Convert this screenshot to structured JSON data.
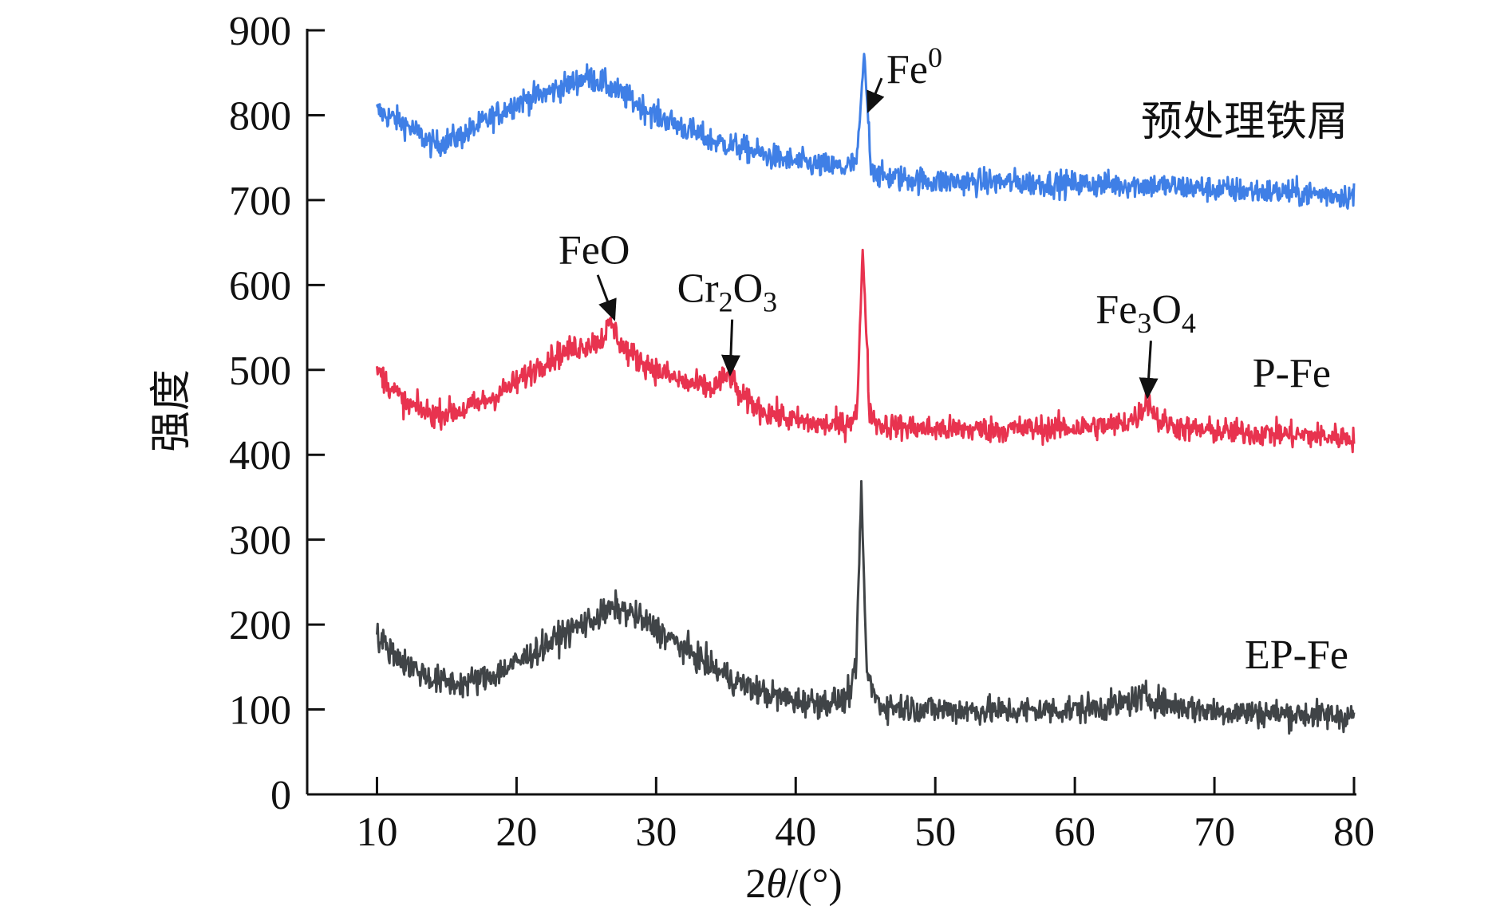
{
  "chart_data": {
    "type": "line",
    "title": "",
    "xlabel": "2θ/(°)",
    "ylabel": "强度",
    "xlim": [
      5,
      80
    ],
    "ylim": [
      0,
      900
    ],
    "xticks": [
      10,
      20,
      30,
      40,
      50,
      60,
      70,
      80
    ],
    "yticks": [
      0,
      100,
      200,
      300,
      400,
      500,
      600,
      700,
      800,
      900
    ],
    "grid": false,
    "series": [
      {
        "name": "预处理铁屑",
        "color": "#3f7fe6",
        "x_range": [
          10,
          80
        ],
        "noise": 11,
        "points": [
          [
            10,
            805
          ],
          [
            12,
            790
          ],
          [
            14,
            765
          ],
          [
            16,
            775
          ],
          [
            18,
            795
          ],
          [
            20,
            815
          ],
          [
            22,
            825
          ],
          [
            24,
            838
          ],
          [
            25,
            845
          ],
          [
            26,
            840
          ],
          [
            28,
            820
          ],
          [
            30,
            800
          ],
          [
            32,
            785
          ],
          [
            34,
            770
          ],
          [
            36,
            762
          ],
          [
            38,
            752
          ],
          [
            40,
            745
          ],
          [
            42,
            740
          ],
          [
            43.5,
            738
          ],
          [
            44.4,
            745
          ],
          [
            44.9,
            872
          ],
          [
            45.4,
            742
          ],
          [
            46,
            728
          ],
          [
            50,
            722
          ],
          [
            55,
            721
          ],
          [
            60,
            719
          ],
          [
            65,
            718
          ],
          [
            70,
            713
          ],
          [
            75,
            709
          ],
          [
            80,
            705
          ]
        ]
      },
      {
        "name": "P-Fe",
        "color": "#e8334f",
        "x_range": [
          10,
          80
        ],
        "noise": 11,
        "points": [
          [
            10,
            500
          ],
          [
            11,
            480
          ],
          [
            12,
            460
          ],
          [
            14,
            448
          ],
          [
            16,
            452
          ],
          [
            18,
            465
          ],
          [
            20,
            485
          ],
          [
            22,
            510
          ],
          [
            24,
            525
          ],
          [
            26,
            535
          ],
          [
            26.8,
            555
          ],
          [
            27.5,
            530
          ],
          [
            28,
            520
          ],
          [
            30,
            500
          ],
          [
            32,
            485
          ],
          [
            34,
            478
          ],
          [
            35.3,
            495
          ],
          [
            36,
            468
          ],
          [
            38,
            450
          ],
          [
            40,
            440
          ],
          [
            42,
            435
          ],
          [
            43.5,
            435
          ],
          [
            44.4,
            450
          ],
          [
            44.8,
            645
          ],
          [
            45.3,
            450
          ],
          [
            46,
            435
          ],
          [
            50,
            430
          ],
          [
            55,
            430
          ],
          [
            60,
            432
          ],
          [
            63,
            435
          ],
          [
            64.5,
            445
          ],
          [
            65.2,
            465
          ],
          [
            66,
            440
          ],
          [
            68,
            430
          ],
          [
            70,
            428
          ],
          [
            75,
            424
          ],
          [
            80,
            420
          ]
        ]
      },
      {
        "name": "EP-Fe",
        "color": "#404447",
        "x_range": [
          10,
          80
        ],
        "noise": 12,
        "points": [
          [
            10,
            185
          ],
          [
            12,
            155
          ],
          [
            14,
            135
          ],
          [
            16,
            130
          ],
          [
            18,
            138
          ],
          [
            20,
            155
          ],
          [
            22,
            175
          ],
          [
            24,
            195
          ],
          [
            26,
            210
          ],
          [
            27,
            220
          ],
          [
            28,
            215
          ],
          [
            30,
            195
          ],
          [
            32,
            172
          ],
          [
            34,
            150
          ],
          [
            36,
            130
          ],
          [
            38,
            118
          ],
          [
            40,
            110
          ],
          [
            42,
            108
          ],
          [
            43.6,
            112
          ],
          [
            44.3,
            140
          ],
          [
            44.7,
            360
          ],
          [
            45.1,
            140
          ],
          [
            46,
            105
          ],
          [
            50,
            100
          ],
          [
            55,
            98
          ],
          [
            60,
            100
          ],
          [
            63,
            105
          ],
          [
            65,
            115
          ],
          [
            67,
            105
          ],
          [
            70,
            98
          ],
          [
            75,
            95
          ],
          [
            80,
            92
          ]
        ]
      }
    ],
    "annotations": [
      {
        "base": "Fe",
        "sub": "0",
        "sub_style": "sup",
        "target_x": 45.2,
        "target_y": 805,
        "text_anchor_x": 46.5,
        "text_anchor_y": 838
      },
      {
        "base": "FeO",
        "sub": "",
        "sub_style": "none",
        "target_x": 27.0,
        "target_y": 560,
        "text_anchor_x": 23.0,
        "text_anchor_y": 625
      },
      {
        "base": "Cr",
        "sub": "2",
        "base2": "O",
        "sub2": "3",
        "sub_style": "sub",
        "target_x": 35.3,
        "target_y": 495,
        "text_anchor_x": 31.5,
        "text_anchor_y": 580
      },
      {
        "base": "Fe",
        "sub": "3",
        "base2": "O",
        "sub2": "4",
        "sub_style": "sub",
        "target_x": 65.2,
        "target_y": 468,
        "text_anchor_x": 61.5,
        "text_anchor_y": 555
      }
    ],
    "legend_placement": "inline-right"
  }
}
